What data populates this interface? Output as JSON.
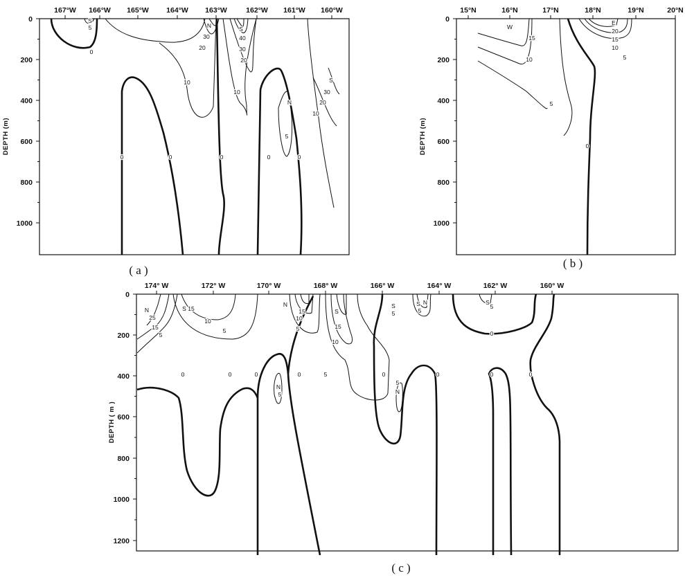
{
  "chart_data": [
    {
      "id": "a",
      "type": "contour",
      "panel_label": "( a )",
      "ylabel": "DEPTH (m)",
      "x_ticks": [
        "167°W",
        "166°W",
        "165°W",
        "164°W",
        "163°W",
        "162°W",
        "161°W",
        "160°W"
      ],
      "y_ticks": [
        "0",
        "200",
        "400",
        "600",
        "800",
        "1000"
      ],
      "ylim": [
        1150,
        0
      ],
      "contour_labels": [
        "S",
        "5",
        "0",
        "N",
        "30",
        "20",
        "10",
        "S",
        "40",
        "30",
        "20",
        "10",
        "0",
        "0",
        "0",
        "0",
        "0",
        "N",
        "5",
        "S",
        "30",
        "20",
        "10"
      ]
    },
    {
      "id": "b",
      "type": "contour",
      "panel_label": "( b )",
      "ylabel": "DEPTH (m)",
      "x_ticks": [
        "15°N",
        "16°N",
        "17°N",
        "18°N",
        "19°N",
        "20°N"
      ],
      "y_ticks": [
        "0",
        "200",
        "400",
        "600",
        "800",
        "1000"
      ],
      "ylim": [
        1150,
        0
      ],
      "contour_labels": [
        "W",
        "15",
        "10",
        "5",
        "E",
        "20",
        "15",
        "10",
        "5",
        "0"
      ]
    },
    {
      "id": "c",
      "type": "contour",
      "panel_label": "( c )",
      "ylabel": "DEPTH ( m )",
      "x_ticks": [
        "174° W",
        "172° W",
        "170° W",
        "168° W",
        "166° W",
        "164° W",
        "162° W",
        "160° W"
      ],
      "y_ticks": [
        "0",
        "200",
        "400",
        "600",
        "800",
        "1000",
        "1200"
      ],
      "ylim": [
        1220,
        0
      ],
      "contour_labels": [
        "N",
        "25",
        "15",
        "5",
        "S",
        "15",
        "10",
        "5",
        "0",
        "0",
        "0",
        "N",
        "15",
        "10",
        "5",
        "N",
        "5",
        "0",
        "S",
        "15",
        "10",
        "5",
        "S",
        "5",
        "0",
        "5",
        "N",
        "S",
        "N",
        "5",
        "0",
        "S",
        "5",
        "0",
        "0",
        "0"
      ]
    }
  ]
}
